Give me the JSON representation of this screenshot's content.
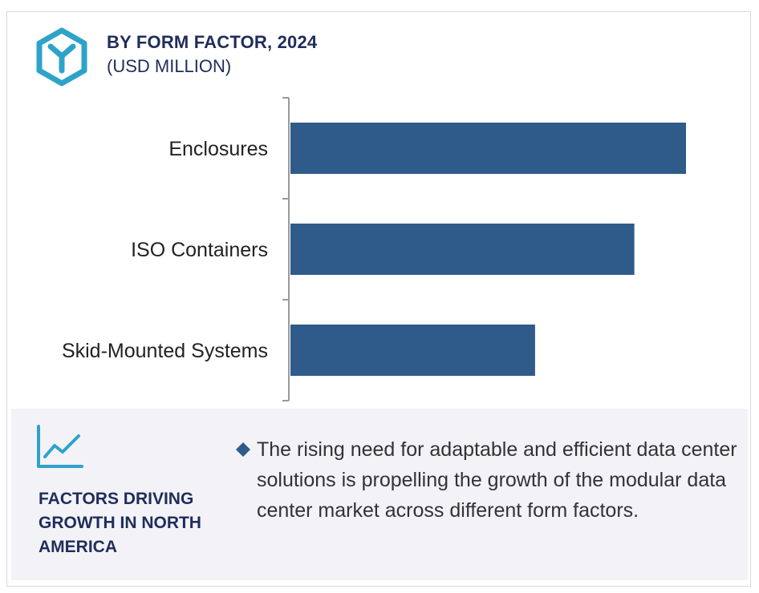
{
  "header": {
    "title": "BY FORM FACTOR, 2024",
    "subtitle": "(USD MILLION)",
    "logo_icon": "hexagon-y-icon"
  },
  "chart_data": {
    "type": "bar",
    "orientation": "horizontal",
    "categories": [
      "Enclosures",
      "ISO Containers",
      "Skid-Mounted Systems"
    ],
    "values": [
      100,
      87,
      62
    ],
    "title": "BY FORM FACTOR, 2024",
    "subtitle": "(USD MILLION)",
    "xlabel": "",
    "ylabel": "",
    "xlim": [
      0,
      100
    ],
    "grid": false,
    "legend": "none",
    "bar_color": "#2e5b8a"
  },
  "footer": {
    "icon": "line-chart-icon",
    "heading": "FACTORS DRIVING GROWTH IN NORTH AMERICA",
    "bullet_icon": "diamond-bullet-icon",
    "description": "The rising need for adaptable and efficient data center solutions is propelling the growth of the modular data center market across different form factors.",
    "accent_color": "#2ea3c9",
    "heading_color": "#1f2d5a"
  }
}
